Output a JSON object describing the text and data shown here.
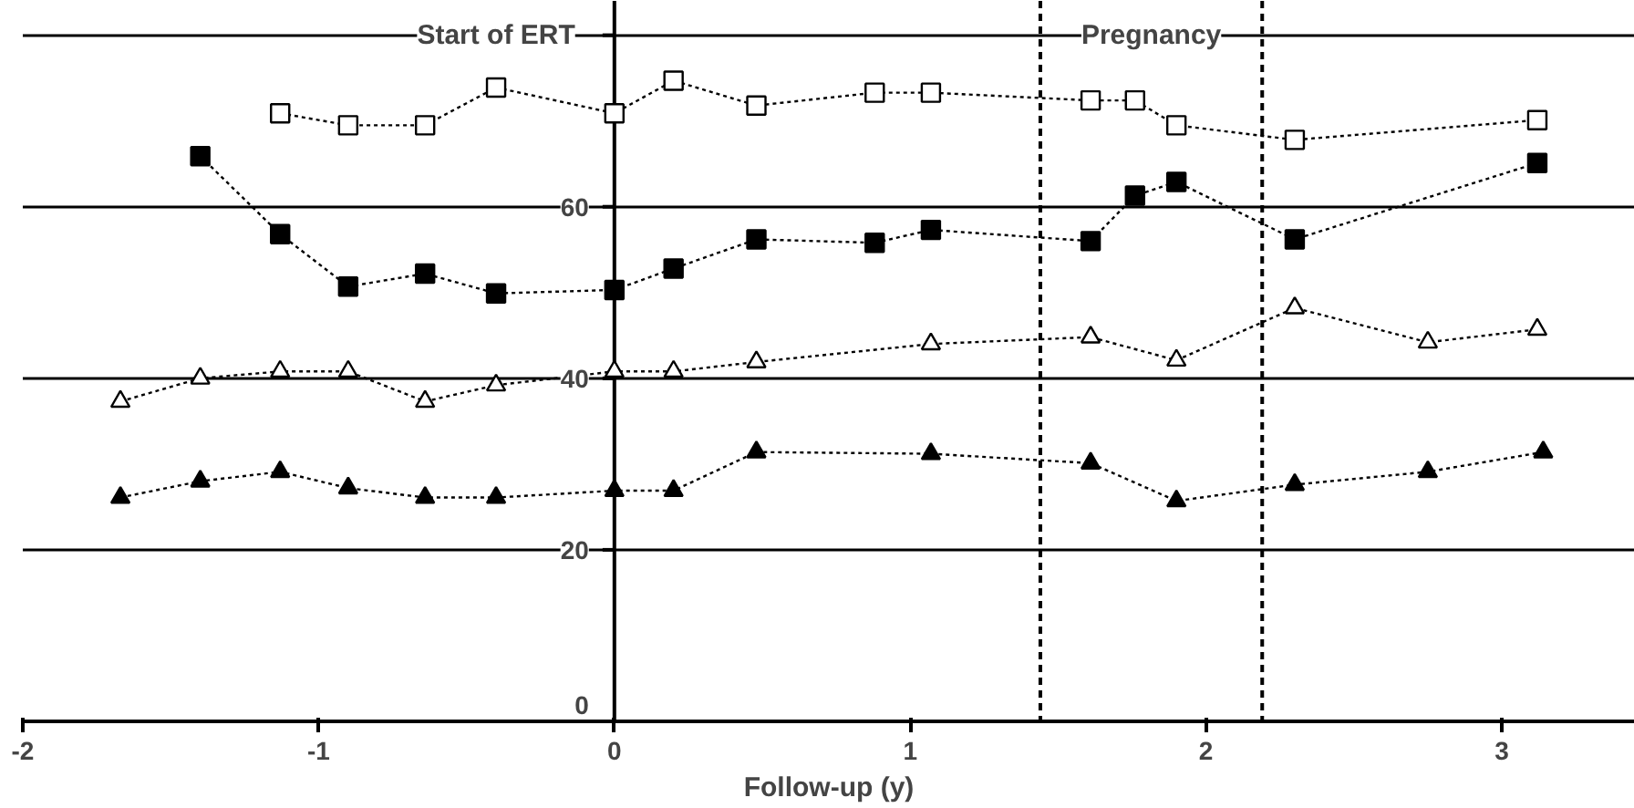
{
  "chart_data": {
    "type": "line",
    "xlabel": "Follow-up (y)",
    "xlim": [
      -2,
      3.45
    ],
    "ylim": [
      0,
      84
    ],
    "xticks": [
      -2,
      -1,
      0,
      1,
      2,
      3
    ],
    "yticks": [
      0,
      20,
      40,
      60,
      {
        "value": 80,
        "label": null
      }
    ],
    "grid": "y",
    "line_style": "dotted",
    "ref_lines": [
      {
        "axis": "x",
        "value": 1.44,
        "line_style": "dashed"
      },
      {
        "axis": "x",
        "value": 2.19,
        "line_style": "dashed"
      }
    ],
    "annotations": [
      "Start of ERT",
      "Pregnancy"
    ],
    "series": [
      {
        "color": "#ffffff",
        "marker": "square",
        "x": [
          -1.13,
          -0.9,
          -0.64,
          -0.4,
          0,
          0.2,
          0.48,
          0.88,
          1.07,
          1.61,
          1.76,
          1.9,
          2.3,
          3.12
        ],
        "values": [
          70.9,
          69.5,
          69.5,
          73.9,
          70.9,
          74.7,
          71.8,
          73.3,
          73.3,
          72.4,
          72.4,
          69.5,
          67.8,
          70.1
        ]
      },
      {
        "color": "#000000",
        "marker": "square",
        "x": [
          -1.4,
          -1.13,
          -0.9,
          -0.64,
          -0.4,
          0,
          0.2,
          0.48,
          0.88,
          1.07,
          1.61,
          1.76,
          1.9,
          2.3,
          3.12
        ],
        "values": [
          65.9,
          56.8,
          50.7,
          52.2,
          49.9,
          50.3,
          52.8,
          56.2,
          55.8,
          57.3,
          56.0,
          61.3,
          62.9,
          56.2,
          65.1
        ]
      },
      {
        "color": "#ffffff",
        "marker": "triangle",
        "x": [
          -1.67,
          -1.4,
          -1.13,
          -0.9,
          -0.64,
          -0.4,
          0,
          0.2,
          0.48,
          1.07,
          1.61,
          1.9,
          2.3,
          2.75,
          3.12
        ],
        "values": [
          37.3,
          40.0,
          40.8,
          40.8,
          37.3,
          39.2,
          40.8,
          40.8,
          41.9,
          44.0,
          44.8,
          42.1,
          48.2,
          44.2,
          45.7
        ]
      },
      {
        "color": "#000000",
        "marker": "triangle",
        "x": [
          -1.67,
          -1.4,
          -1.13,
          -0.9,
          -0.64,
          -0.4,
          0,
          0.2,
          0.48,
          1.07,
          1.61,
          1.9,
          2.3,
          2.75,
          3.14
        ],
        "values": [
          26.1,
          28.0,
          29.1,
          27.2,
          26.1,
          26.1,
          26.9,
          26.9,
          31.4,
          31.2,
          30.1,
          25.7,
          27.6,
          29.1,
          31.4
        ]
      }
    ]
  }
}
